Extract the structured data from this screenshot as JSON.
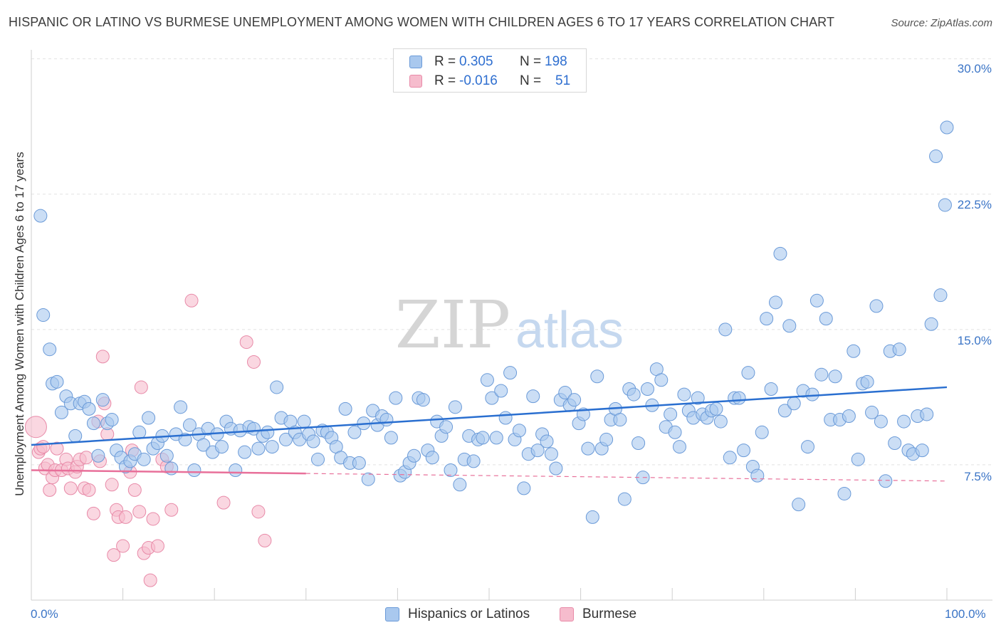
{
  "header": {
    "title": "HISPANIC OR LATINO VS BURMESE UNEMPLOYMENT AMONG WOMEN WITH CHILDREN AGES 6 TO 17 YEARS CORRELATION CHART",
    "source": "Source: ZipAtlas.com"
  },
  "watermark": "ZIPatlas",
  "stats": [
    {
      "r_label": "R =",
      "r_value": "0.305",
      "n_label": "N =",
      "n_value": "198"
    },
    {
      "r_label": "R =",
      "r_value": "-0.016",
      "n_label": "N =",
      "n_value": "51"
    }
  ],
  "legend": [
    {
      "label": "Hispanics or Latinos"
    },
    {
      "label": "Burmese"
    }
  ],
  "colors": {
    "blue_fill": "#a9c8ee",
    "blue_stroke": "#6a9ad8",
    "blue_line": "#2a6fd0",
    "pink_fill": "#f6bccd",
    "pink_stroke": "#e88aa8",
    "pink_line": "#e8709a",
    "tick_text": "#3a74c6",
    "grid": "#e2e2e2"
  },
  "chart_data": {
    "type": "scatter",
    "title": "HISPANIC OR LATINO VS BURMESE UNEMPLOYMENT AMONG WOMEN WITH CHILDREN AGES 6 TO 17 YEARS CORRELATION CHART",
    "xlabel": "",
    "ylabel": "Unemployment Among Women with Children Ages 6 to 17 years",
    "xlim": [
      0,
      100
    ],
    "ylim": [
      0,
      30.5
    ],
    "x_tick_labels": [
      "0.0%",
      "100.0%"
    ],
    "y_ticks": [
      7.5,
      15.0,
      22.5,
      30.0
    ],
    "y_tick_labels": [
      "7.5%",
      "15.0%",
      "22.5%",
      "30.0%"
    ],
    "grid": true,
    "legend_position": "bottom-center",
    "series": [
      {
        "name": "Hispanics or Latinos",
        "trend": {
          "x": [
            0,
            100
          ],
          "y": [
            8.6,
            11.8
          ]
        },
        "points": [
          [
            1,
            21.3
          ],
          [
            1.3,
            15.8
          ],
          [
            2,
            13.9
          ],
          [
            2.3,
            12.0
          ],
          [
            2.8,
            12.1
          ],
          [
            3.3,
            10.4
          ],
          [
            3.8,
            11.3
          ],
          [
            4.3,
            10.9
          ],
          [
            4.8,
            9.1
          ],
          [
            5.3,
            10.9
          ],
          [
            5.8,
            11.0
          ],
          [
            6.3,
            10.6
          ],
          [
            6.8,
            9.8
          ],
          [
            7.3,
            8.0
          ],
          [
            7.8,
            11.1
          ],
          [
            8.3,
            9.8
          ],
          [
            8.8,
            10.0
          ],
          [
            9.3,
            8.3
          ],
          [
            9.8,
            7.9
          ],
          [
            10.3,
            7.4
          ],
          [
            10.8,
            7.7
          ],
          [
            11.3,
            8.1
          ],
          [
            11.8,
            9.3
          ],
          [
            12.3,
            7.8
          ],
          [
            12.8,
            10.1
          ],
          [
            13.3,
            8.4
          ],
          [
            13.8,
            8.7
          ],
          [
            14.3,
            9.1
          ],
          [
            14.8,
            8.0
          ],
          [
            15.3,
            7.3
          ],
          [
            15.8,
            9.2
          ],
          [
            16.3,
            10.7
          ],
          [
            16.8,
            8.9
          ],
          [
            17.3,
            9.7
          ],
          [
            17.8,
            7.2
          ],
          [
            18.3,
            9.2
          ],
          [
            18.8,
            8.6
          ],
          [
            19.3,
            9.5
          ],
          [
            19.8,
            8.2
          ],
          [
            20.3,
            9.2
          ],
          [
            20.8,
            8.5
          ],
          [
            21.3,
            9.9
          ],
          [
            21.8,
            9.5
          ],
          [
            22.3,
            7.2
          ],
          [
            22.8,
            9.4
          ],
          [
            23.3,
            8.2
          ],
          [
            23.8,
            9.6
          ],
          [
            24.3,
            9.5
          ],
          [
            24.8,
            8.4
          ],
          [
            25.3,
            9.1
          ],
          [
            25.8,
            9.3
          ],
          [
            26.3,
            8.5
          ],
          [
            26.8,
            11.8
          ],
          [
            27.3,
            10.1
          ],
          [
            27.8,
            8.9
          ],
          [
            28.3,
            9.9
          ],
          [
            28.8,
            9.3
          ],
          [
            29.3,
            8.9
          ],
          [
            29.8,
            9.9
          ],
          [
            30.3,
            9.2
          ],
          [
            30.8,
            8.8
          ],
          [
            31.3,
            7.8
          ],
          [
            31.8,
            9.4
          ],
          [
            32.3,
            9.3
          ],
          [
            32.8,
            9.0
          ],
          [
            33.3,
            8.5
          ],
          [
            33.8,
            7.9
          ],
          [
            34.3,
            10.6
          ],
          [
            34.8,
            7.6
          ],
          [
            35.3,
            9.3
          ],
          [
            35.8,
            7.6
          ],
          [
            36.3,
            9.8
          ],
          [
            36.8,
            6.7
          ],
          [
            37.3,
            10.5
          ],
          [
            37.8,
            9.7
          ],
          [
            38.3,
            10.2
          ],
          [
            38.8,
            10.0
          ],
          [
            39.3,
            9.0
          ],
          [
            39.8,
            11.2
          ],
          [
            40.3,
            6.9
          ],
          [
            40.8,
            7.1
          ],
          [
            41.3,
            7.6
          ],
          [
            41.8,
            8.0
          ],
          [
            42.3,
            11.2
          ],
          [
            42.8,
            11.1
          ],
          [
            43.3,
            8.3
          ],
          [
            43.8,
            7.9
          ],
          [
            44.3,
            9.9
          ],
          [
            44.8,
            9.1
          ],
          [
            45.3,
            9.6
          ],
          [
            45.8,
            7.2
          ],
          [
            46.3,
            10.7
          ],
          [
            46.8,
            6.4
          ],
          [
            47.3,
            7.8
          ],
          [
            47.8,
            9.1
          ],
          [
            48.3,
            7.7
          ],
          [
            48.8,
            8.9
          ],
          [
            49.3,
            9.0
          ],
          [
            49.8,
            12.2
          ],
          [
            50.3,
            11.2
          ],
          [
            50.8,
            9.0
          ],
          [
            51.3,
            11.6
          ],
          [
            51.8,
            10.1
          ],
          [
            52.3,
            12.6
          ],
          [
            52.8,
            8.9
          ],
          [
            53.3,
            9.4
          ],
          [
            53.8,
            6.2
          ],
          [
            54.3,
            8.1
          ],
          [
            54.8,
            11.3
          ],
          [
            55.3,
            8.3
          ],
          [
            55.8,
            9.2
          ],
          [
            56.3,
            8.8
          ],
          [
            56.8,
            8.1
          ],
          [
            57.3,
            7.3
          ],
          [
            57.8,
            11.1
          ],
          [
            58.3,
            11.5
          ],
          [
            58.8,
            10.8
          ],
          [
            59.3,
            11.1
          ],
          [
            59.8,
            9.8
          ],
          [
            60.3,
            10.3
          ],
          [
            60.8,
            8.4
          ],
          [
            61.3,
            4.6
          ],
          [
            61.8,
            12.4
          ],
          [
            62.3,
            8.4
          ],
          [
            62.8,
            8.9
          ],
          [
            63.3,
            10.0
          ],
          [
            63.8,
            10.6
          ],
          [
            64.3,
            10.0
          ],
          [
            64.8,
            5.6
          ],
          [
            65.3,
            11.7
          ],
          [
            65.8,
            11.4
          ],
          [
            66.3,
            8.7
          ],
          [
            66.8,
            6.8
          ],
          [
            67.3,
            11.7
          ],
          [
            67.8,
            10.8
          ],
          [
            68.3,
            12.8
          ],
          [
            68.8,
            12.2
          ],
          [
            69.3,
            9.6
          ],
          [
            69.8,
            10.3
          ],
          [
            70.3,
            9.3
          ],
          [
            70.8,
            8.5
          ],
          [
            71.3,
            11.4
          ],
          [
            71.8,
            10.5
          ],
          [
            72.3,
            10.1
          ],
          [
            72.8,
            11.2
          ],
          [
            73.3,
            10.3
          ],
          [
            73.8,
            10.1
          ],
          [
            74.3,
            10.5
          ],
          [
            74.8,
            10.6
          ],
          [
            75.3,
            9.9
          ],
          [
            75.8,
            15.0
          ],
          [
            76.3,
            7.9
          ],
          [
            76.8,
            11.2
          ],
          [
            77.3,
            11.2
          ],
          [
            77.8,
            8.3
          ],
          [
            78.3,
            12.6
          ],
          [
            78.8,
            7.4
          ],
          [
            79.3,
            6.9
          ],
          [
            79.8,
            9.3
          ],
          [
            80.3,
            15.6
          ],
          [
            80.8,
            11.7
          ],
          [
            81.3,
            16.5
          ],
          [
            81.8,
            19.2
          ],
          [
            82.3,
            10.5
          ],
          [
            82.8,
            15.2
          ],
          [
            83.3,
            10.9
          ],
          [
            83.8,
            5.3
          ],
          [
            84.3,
            11.6
          ],
          [
            84.8,
            8.5
          ],
          [
            85.3,
            11.4
          ],
          [
            85.8,
            16.6
          ],
          [
            86.3,
            12.5
          ],
          [
            86.8,
            15.6
          ],
          [
            87.3,
            10.0
          ],
          [
            87.8,
            12.4
          ],
          [
            88.3,
            10.0
          ],
          [
            88.8,
            5.9
          ],
          [
            89.3,
            10.2
          ],
          [
            89.8,
            13.8
          ],
          [
            90.3,
            7.8
          ],
          [
            90.8,
            12.0
          ],
          [
            91.3,
            12.1
          ],
          [
            91.8,
            10.4
          ],
          [
            92.3,
            16.3
          ],
          [
            92.8,
            9.9
          ],
          [
            93.3,
            6.6
          ],
          [
            93.8,
            13.8
          ],
          [
            94.3,
            8.7
          ],
          [
            94.8,
            13.9
          ],
          [
            95.3,
            9.9
          ],
          [
            95.8,
            8.3
          ],
          [
            96.3,
            8.1
          ],
          [
            96.8,
            10.2
          ],
          [
            97.3,
            8.3
          ],
          [
            97.8,
            10.3
          ],
          [
            98.3,
            15.3
          ],
          [
            98.8,
            24.6
          ],
          [
            99.3,
            16.9
          ],
          [
            99.8,
            21.9
          ],
          [
            100,
            26.2
          ]
        ]
      },
      {
        "name": "Burmese",
        "trend": {
          "x": [
            0,
            100
          ],
          "y": [
            7.2,
            6.6
          ]
        },
        "points": [
          [
            0.5,
            9.6
          ],
          [
            0.8,
            8.2
          ],
          [
            1,
            8.4
          ],
          [
            1.3,
            8.5
          ],
          [
            1.5,
            7.3
          ],
          [
            1.8,
            7.5
          ],
          [
            2,
            6.1
          ],
          [
            2.3,
            6.8
          ],
          [
            2.6,
            7.2
          ],
          [
            2.8,
            8.4
          ],
          [
            3.3,
            7.2
          ],
          [
            3.8,
            7.8
          ],
          [
            4,
            7.3
          ],
          [
            4.3,
            6.2
          ],
          [
            4.8,
            7.1
          ],
          [
            5,
            7.4
          ],
          [
            5.3,
            7.8
          ],
          [
            5.8,
            6.2
          ],
          [
            6,
            7.9
          ],
          [
            6.3,
            6.1
          ],
          [
            6.8,
            4.8
          ],
          [
            7.3,
            9.9
          ],
          [
            7.5,
            7.7
          ],
          [
            7.8,
            13.5
          ],
          [
            8,
            10.9
          ],
          [
            8.3,
            9.2
          ],
          [
            8.8,
            6.4
          ],
          [
            9,
            2.5
          ],
          [
            9.3,
            5.0
          ],
          [
            9.5,
            4.6
          ],
          [
            10,
            3.0
          ],
          [
            10.3,
            4.6
          ],
          [
            10.8,
            7.1
          ],
          [
            11,
            8.3
          ],
          [
            11.3,
            6.1
          ],
          [
            11.8,
            4.9
          ],
          [
            12,
            11.8
          ],
          [
            12.3,
            2.6
          ],
          [
            12.8,
            2.9
          ],
          [
            13,
            1.1
          ],
          [
            13.3,
            4.5
          ],
          [
            13.8,
            3.0
          ],
          [
            14.3,
            7.8
          ],
          [
            14.8,
            7.4
          ],
          [
            15.3,
            5.0
          ],
          [
            17.5,
            16.6
          ],
          [
            21,
            5.4
          ],
          [
            23.5,
            14.3
          ],
          [
            24.3,
            13.2
          ],
          [
            24.8,
            4.9
          ],
          [
            25.5,
            3.3
          ]
        ]
      }
    ]
  }
}
